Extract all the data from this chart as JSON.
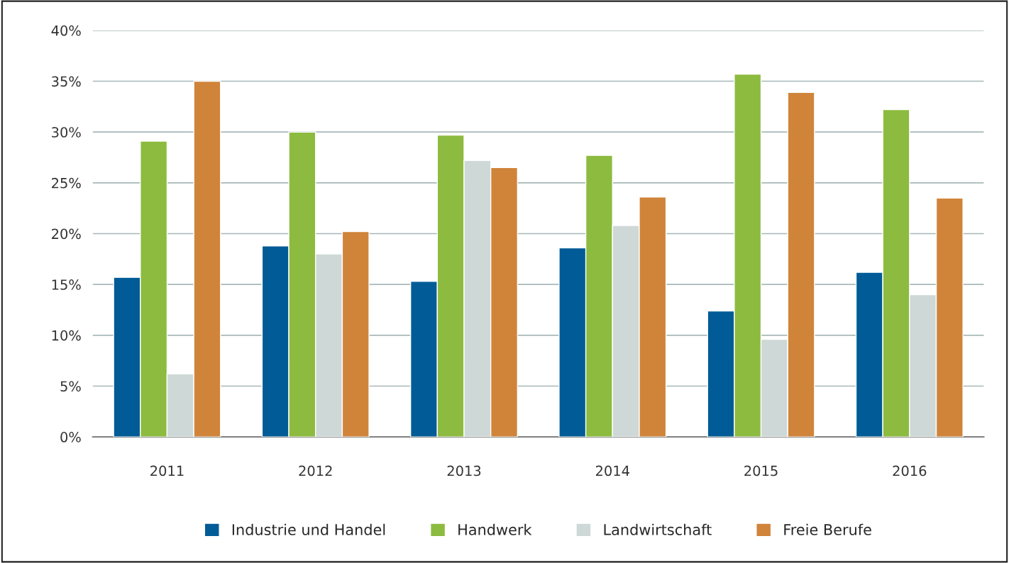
{
  "chart_data": {
    "type": "bar",
    "categories": [
      "2011",
      "2012",
      "2013",
      "2014",
      "2015",
      "2016"
    ],
    "series": [
      {
        "name": "Industrie und Handel",
        "color": "#005b96",
        "values": [
          15.7,
          18.8,
          15.3,
          18.6,
          12.4,
          16.2
        ]
      },
      {
        "name": "Handwerk",
        "color": "#8cbb3f",
        "values": [
          29.1,
          30.0,
          29.7,
          27.7,
          35.7,
          32.2
        ]
      },
      {
        "name": "Landwirtschaft",
        "color": "#ced8d6",
        "values": [
          6.2,
          18.0,
          27.2,
          20.8,
          9.6,
          14.0
        ]
      },
      {
        "name": "Freie Berufe",
        "color": "#d0843a",
        "values": [
          35.0,
          20.2,
          26.5,
          23.6,
          33.9,
          23.5
        ]
      }
    ],
    "ylim": [
      0,
      40
    ],
    "yticks": [
      {
        "value": 0,
        "label": "0%"
      },
      {
        "value": 5,
        "label": "5%"
      },
      {
        "value": 10,
        "label": "10%"
      },
      {
        "value": 15,
        "label": "15%"
      },
      {
        "value": 20,
        "label": "20%"
      },
      {
        "value": 25,
        "label": "25%"
      },
      {
        "value": 30,
        "label": "30%"
      },
      {
        "value": 35,
        "label": "35%"
      },
      {
        "value": 40,
        "label": "40%"
      }
    ],
    "grid": "y",
    "legend": "bottom"
  }
}
